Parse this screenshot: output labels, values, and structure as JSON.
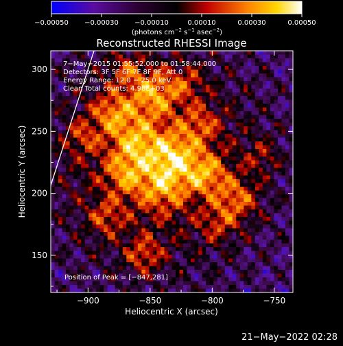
{
  "colorbar": {
    "ticks": [
      "−0.00050",
      "−0.00030",
      "−0.00010",
      "0.00010",
      "0.00030",
      "0.00050"
    ],
    "unit_parts": {
      "a": "(photons cm",
      "a_sup": "−2",
      "b": " s",
      "b_sup": "−1",
      "c": " asec",
      "c_sup": "−2",
      "d": ")"
    },
    "range": [
      -0.0005,
      0.0005
    ],
    "colors": [
      "#0000ff",
      "#6a0c8a",
      "#000000",
      "#d00000",
      "#ff8800",
      "#ffd700",
      "#ffffff"
    ]
  },
  "chart_data": {
    "type": "heatmap",
    "title": "Reconstructed RHESSI Image",
    "xlabel": "Heliocentric X (arcsec)",
    "ylabel": "Heliocentric Y (arcsec)",
    "xlim": [
      -930,
      -735
    ],
    "ylim": [
      120,
      315
    ],
    "xticks": [
      -900,
      -850,
      -800,
      -750
    ],
    "yticks": [
      150,
      200,
      250,
      300
    ],
    "xtick_labels": [
      "−900",
      "−850",
      "−800",
      "−750"
    ],
    "ytick_labels": [
      "150",
      "200",
      "250",
      "300"
    ],
    "annotations": [
      "7−May−2015 01:55:52.000 to 01:58:44.000",
      "Detectors: 3F 5F 6F 7F 8F 9F, Att 0",
      "Energy Range: 12.0 − 25.0 keV",
      "Clean    Total counts: 4.98E+03"
    ],
    "peak_label": "Position of Peak = [−847,281]",
    "peak": [
      -847,
      281
    ],
    "grid": false
  },
  "footer_timestamp": "21−May−2022 02:28"
}
